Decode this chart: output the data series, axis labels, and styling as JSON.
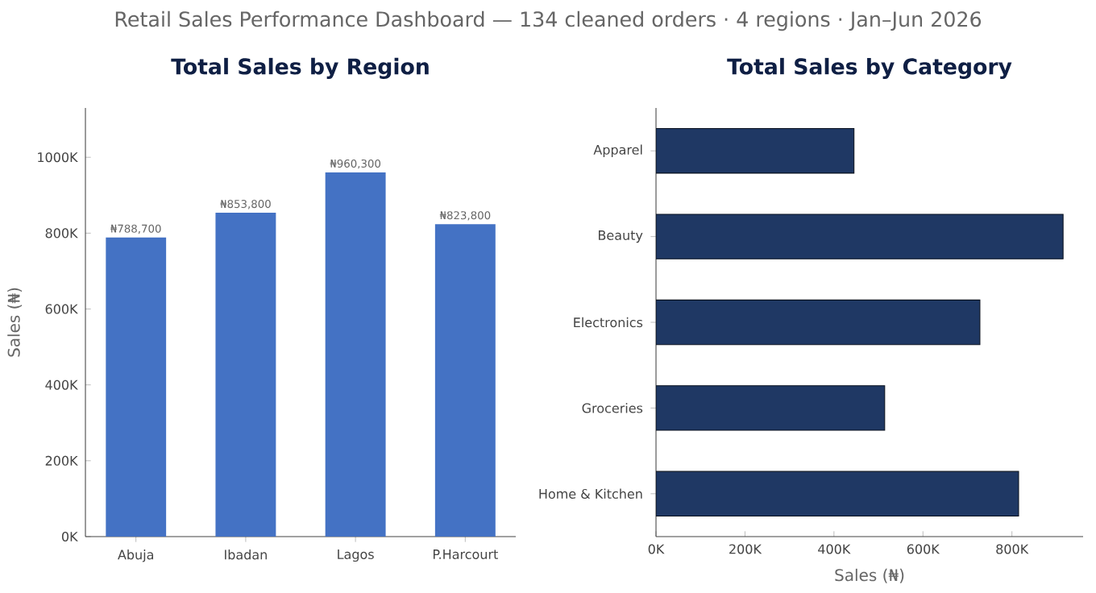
{
  "chart_data": [
    {
      "type": "other",
      "title": "Retail Sales Performance Dashboard  —  134 cleaned orders · 4 regions · Jan–Jun 2026"
    },
    {
      "type": "bar",
      "title": "Total Sales by Region",
      "ylabel": "Sales (₦)",
      "categories": [
        "Abuja",
        "Ibadan",
        "Lagos",
        "P.Harcourt"
      ],
      "values": [
        788700,
        853800,
        960300,
        823800
      ],
      "color": "#4472c4",
      "value_labels": [
        "₦788,700",
        "₦853,800",
        "₦960,300",
        "₦823,800"
      ],
      "ylim": [
        0,
        1130000
      ],
      "yticks": [
        {
          "value": 0,
          "label": "0K"
        },
        {
          "value": 200000,
          "label": "200K"
        },
        {
          "value": 400000,
          "label": "400K"
        },
        {
          "value": 600000,
          "label": "600K"
        },
        {
          "value": 800000,
          "label": "800K"
        },
        {
          "value": 1000000,
          "label": "1000K"
        }
      ]
    },
    {
      "type": "bar",
      "orientation": "horizontal",
      "title": "Total Sales by Category",
      "xlabel": "Sales (₦)",
      "categories": [
        "Apparel",
        "Beauty",
        "Electronics",
        "Groceries",
        "Home & Kitchen"
      ],
      "values": [
        445000,
        915000,
        728000,
        514000,
        815000
      ],
      "color": "#1f3864",
      "xlim": [
        0,
        960000
      ],
      "xticks": [
        {
          "value": 0,
          "label": "0K"
        },
        {
          "value": 200000,
          "label": "200K"
        },
        {
          "value": 400000,
          "label": "400K"
        },
        {
          "value": 600000,
          "label": "600K"
        },
        {
          "value": 800000,
          "label": "800K"
        }
      ]
    }
  ]
}
